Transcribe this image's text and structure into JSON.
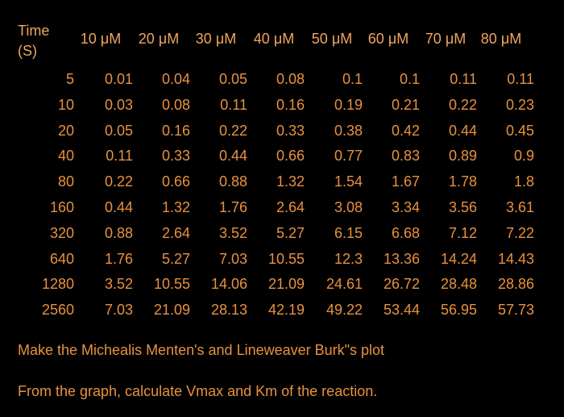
{
  "table": {
    "header": [
      "Time\n(S)",
      "10 μM",
      "20 μM",
      "30 μM",
      "40 μM",
      "50 μM",
      "60 μM",
      "70 μM",
      "80 μM"
    ],
    "rows": [
      [
        "5",
        "0.01",
        "0.04",
        "0.05",
        "0.08",
        "0.1",
        "0.1",
        "0.11",
        "0.11"
      ],
      [
        "10",
        "0.03",
        "0.08",
        "0.11",
        "0.16",
        "0.19",
        "0.21",
        "0.22",
        "0.23"
      ],
      [
        "20",
        "0.05",
        "0.16",
        "0.22",
        "0.33",
        "0.38",
        "0.42",
        "0.44",
        "0.45"
      ],
      [
        "40",
        "0.11",
        "0.33",
        "0.44",
        "0.66",
        "0.77",
        "0.83",
        "0.89",
        "0.9"
      ],
      [
        "80",
        "0.22",
        "0.66",
        "0.88",
        "1.32",
        "1.54",
        "1.67",
        "1.78",
        "1.8"
      ],
      [
        "160",
        "0.44",
        "1.32",
        "1.76",
        "2.64",
        "3.08",
        "3.34",
        "3.56",
        "3.61"
      ],
      [
        "320",
        "0.88",
        "2.64",
        "3.52",
        "5.27",
        "6.15",
        "6.68",
        "7.12",
        "7.22"
      ],
      [
        "640",
        "1.76",
        "5.27",
        "7.03",
        "10.55",
        "12.3",
        "13.36",
        "14.24",
        "14.43"
      ],
      [
        "1280",
        "3.52",
        "10.55",
        "14.06",
        "21.09",
        "24.61",
        "26.72",
        "28.48",
        "28.86"
      ],
      [
        "2560",
        "7.03",
        "21.09",
        "28.13",
        "42.19",
        "49.22",
        "53.44",
        "56.95",
        "57.73"
      ]
    ]
  },
  "questions": [
    "Make the Michealis Menten's and Lineweaver Burk\"s plot",
    "From the graph, calculate Vmax and Km of the reaction."
  ]
}
